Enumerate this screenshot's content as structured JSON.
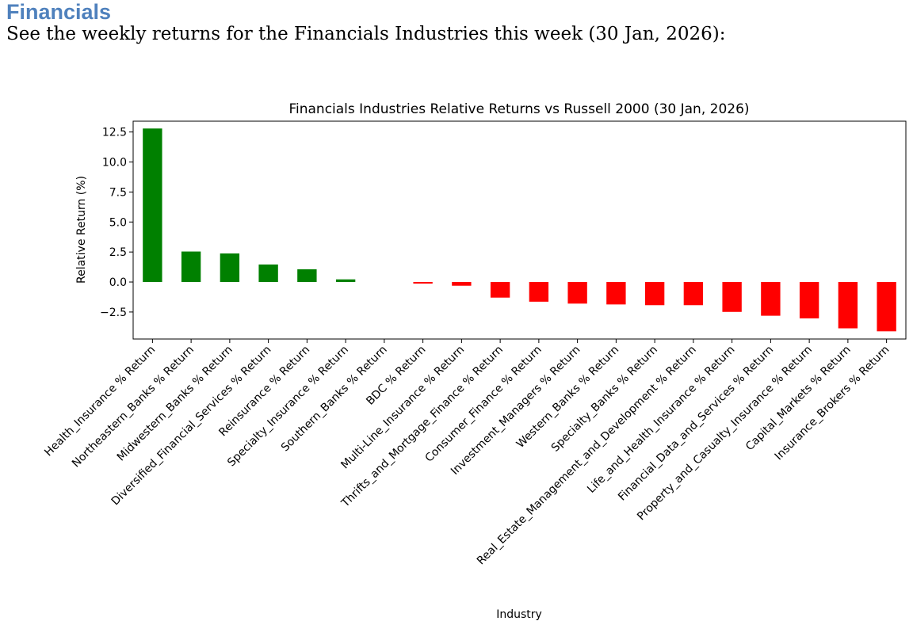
{
  "document": {
    "heading": "Financials",
    "intro": "See the weekly returns for the Financials Industries this week (30 Jan, 2026):"
  },
  "chart_data": {
    "type": "bar",
    "title": "Financials Industries Relative Returns vs Russell 2000 (30 Jan, 2026)",
    "xlabel": "Industry",
    "ylabel": "Relative Return (%)",
    "ylim": [
      -4.75,
      13.4
    ],
    "yticks": [
      -2.5,
      0.0,
      2.5,
      5.0,
      7.5,
      10.0,
      12.5
    ],
    "ytick_labels": [
      "−2.5",
      "0.0",
      "2.5",
      "5.0",
      "7.5",
      "10.0",
      "12.5"
    ],
    "grid": false,
    "legend": "none",
    "positive_color": "#008000",
    "negative_color": "#ff0000",
    "categories": [
      "Health_Insurance % Return",
      "Northeastern_Banks % Return",
      "Midwestern_Banks % Return",
      "Diversified_Financial_Services % Return",
      "Reinsurance % Return",
      "Specialty_Insurance % Return",
      "Southern_Banks % Return",
      "BDC % Return",
      "Multi-Line_Insurance % Return",
      "Thrifts_and_Mortgage_Finance % Return",
      "Consumer_Finance % Return",
      "Investment_Managers % Return",
      "Western_Banks % Return",
      "Specialty_Banks % Return",
      "Real_Estate_Management_and_Development % Return",
      "Life_and_Health_Insurance % Return",
      "Financial_Data_and_Services % Return",
      "Property_and_Casualty_Insurance % Return",
      "Capital_Markets % Return",
      "Insurance_Brokers % Return"
    ],
    "values": [
      12.79,
      2.54,
      2.38,
      1.46,
      1.06,
      0.22,
      0.0,
      -0.13,
      -0.31,
      -1.3,
      -1.64,
      -1.8,
      -1.87,
      -1.93,
      -1.93,
      -2.49,
      -2.81,
      -3.03,
      -3.86,
      -4.11
    ]
  }
}
